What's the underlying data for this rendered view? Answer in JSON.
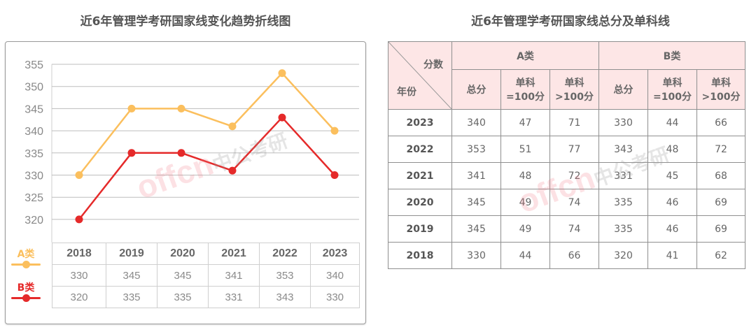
{
  "left": {
    "title": "近6年管理学考研国家线变化趋势折线图",
    "y_ticks": [
      "355",
      "350",
      "345",
      "340",
      "335",
      "330",
      "325",
      "320"
    ],
    "years": [
      "2018",
      "2019",
      "2020",
      "2021",
      "2022",
      "2023"
    ],
    "legend": [
      {
        "label": "A类",
        "color": "#fbbf5d"
      },
      {
        "label": "B类",
        "color": "#e52a2a"
      }
    ],
    "table_rows": [
      [
        "330",
        "345",
        "345",
        "341",
        "353",
        "340"
      ],
      [
        "320",
        "335",
        "335",
        "331",
        "343",
        "330"
      ]
    ],
    "watermark": "offcn",
    "watermark_cn": "中公考研"
  },
  "right": {
    "title": "近6年管理学考研国家线总分及单科线",
    "corner_top": "分数",
    "corner_bottom": "年份",
    "group_a": "A类",
    "group_b": "B类",
    "sub_headers": [
      "总分",
      "单科\n=100分",
      "单科\n>100分",
      "总分",
      "单科\n=100分",
      "单科\n>100分"
    ],
    "rows": [
      {
        "year": "2023",
        "values": [
          "340",
          "47",
          "71",
          "330",
          "44",
          "66"
        ]
      },
      {
        "year": "2022",
        "values": [
          "353",
          "51",
          "77",
          "343",
          "48",
          "72"
        ]
      },
      {
        "year": "2021",
        "values": [
          "341",
          "48",
          "72",
          "331",
          "45",
          "68"
        ]
      },
      {
        "year": "2020",
        "values": [
          "345",
          "49",
          "74",
          "335",
          "46",
          "69"
        ]
      },
      {
        "year": "2019",
        "values": [
          "345",
          "49",
          "74",
          "335",
          "46",
          "69"
        ]
      },
      {
        "year": "2018",
        "values": [
          "330",
          "44",
          "66",
          "320",
          "41",
          "62"
        ]
      }
    ]
  },
  "chart_data": {
    "type": "line",
    "title": "近6年管理学考研国家线变化趋势折线图",
    "categories": [
      "2018",
      "2019",
      "2020",
      "2021",
      "2022",
      "2023"
    ],
    "series": [
      {
        "name": "A类",
        "values": [
          330,
          345,
          345,
          341,
          353,
          340
        ],
        "color": "#fbbf5d"
      },
      {
        "name": "B类",
        "values": [
          320,
          335,
          335,
          331,
          343,
          330
        ],
        "color": "#e52a2a"
      }
    ],
    "xlabel": "",
    "ylabel": "",
    "ylim": [
      320,
      355
    ],
    "yticks": [
      320,
      325,
      330,
      335,
      340,
      345,
      350,
      355
    ],
    "grid": true,
    "legend_position": "bottom-left"
  }
}
